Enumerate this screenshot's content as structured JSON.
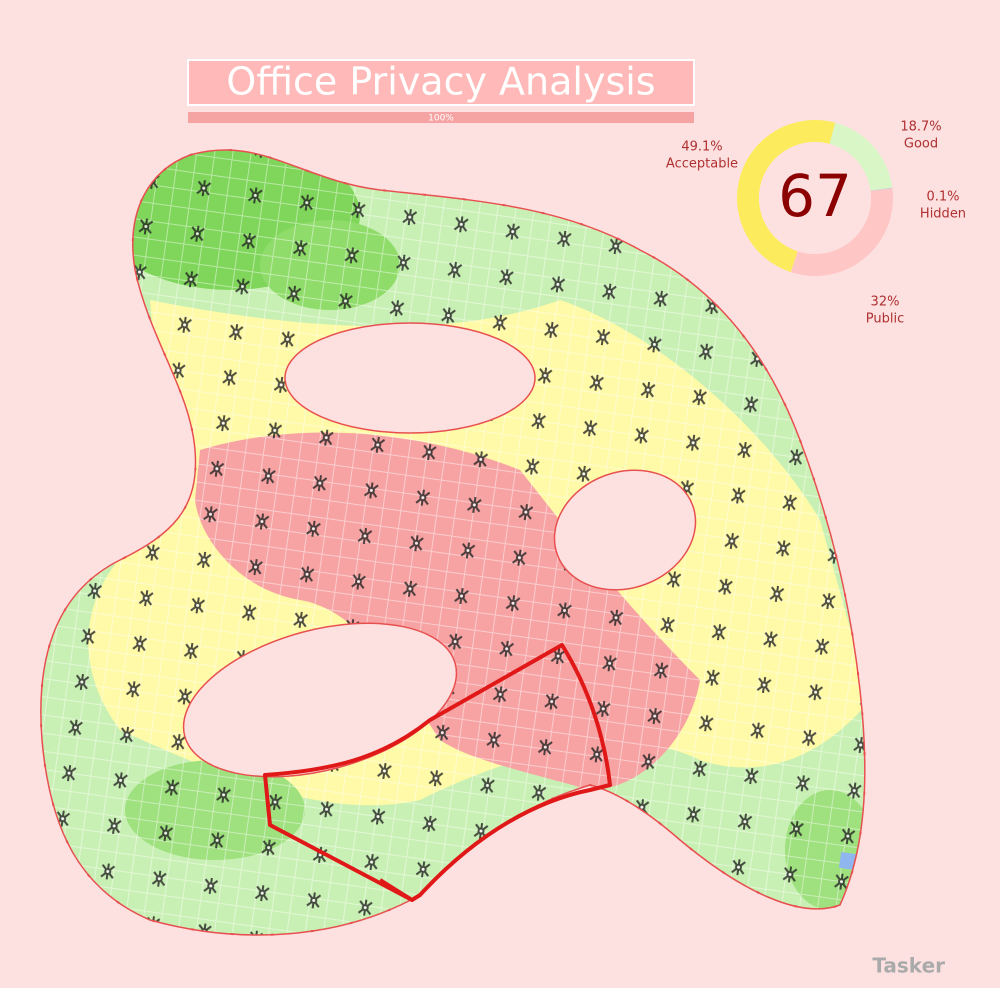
{
  "header": {
    "title": "Office Privacy Analysis"
  },
  "progress": {
    "value": 100,
    "label": "100%"
  },
  "chart_data": {
    "type": "donut",
    "center_label": "67",
    "categories": [
      "Good",
      "Hidden",
      "Public",
      "Acceptable"
    ],
    "values": [
      18.7,
      0.1,
      32,
      49.1
    ],
    "value_labels": [
      "18.7%",
      "0.1%",
      "32%",
      "49.1%"
    ],
    "colors": [
      "#d9f7c6",
      "#9fc4ef",
      "#ffc6c6",
      "#fdeb5e"
    ]
  },
  "watermark": "Tasker"
}
